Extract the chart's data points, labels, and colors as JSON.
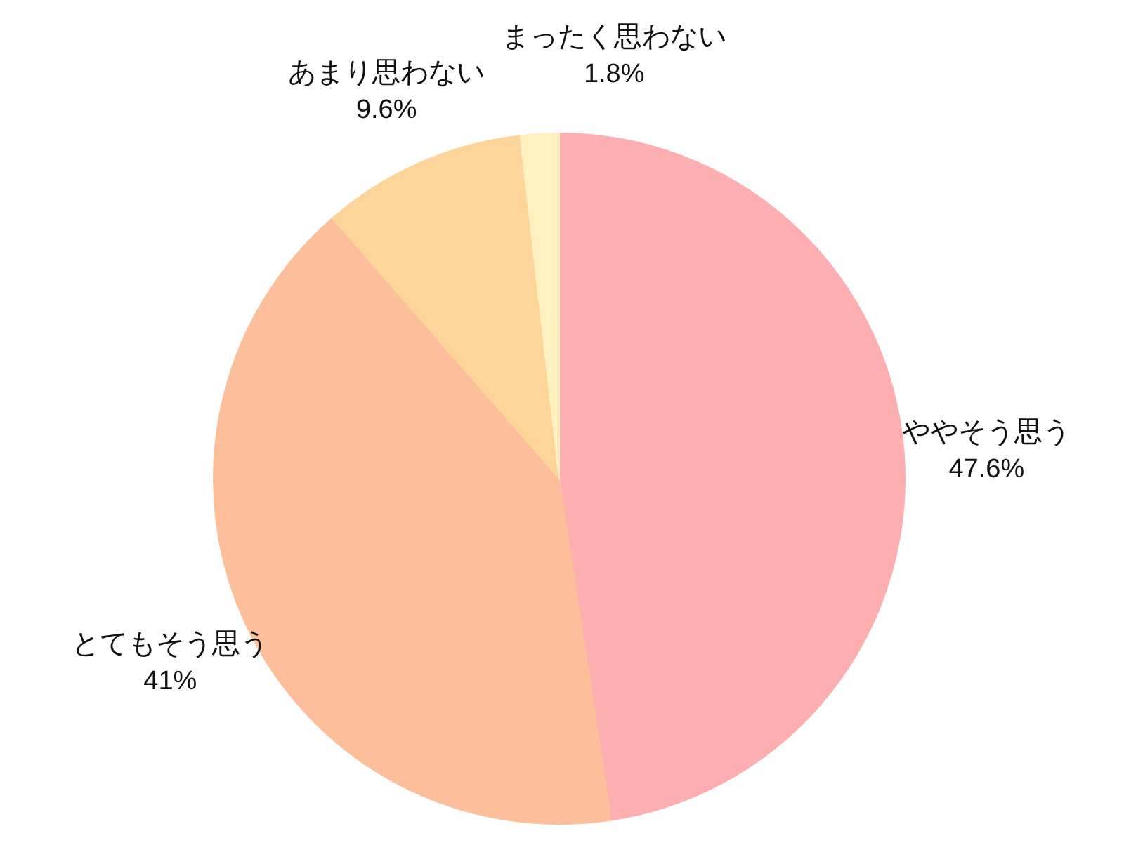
{
  "chart_data": {
    "type": "pie",
    "categories": [
      "ややそう思う",
      "とてもそう思う",
      "あまり思わない",
      "まったく思わない"
    ],
    "values": [
      47.6,
      41,
      9.6,
      1.8
    ],
    "colors": [
      "#fdaeb0",
      "#fdbf9b",
      "#fdd49a",
      "#fff0c0"
    ],
    "value_labels": [
      "47.6%",
      "41%",
      "9.6%",
      "1.8%"
    ]
  }
}
